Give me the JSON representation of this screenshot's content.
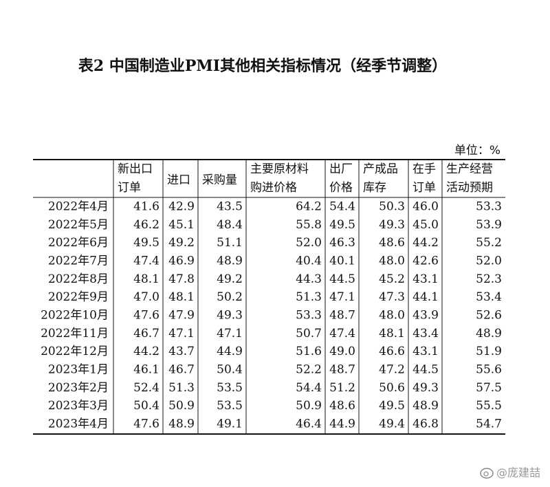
{
  "title": "表2 中国制造业PMI其他相关指标情况（经季节调整）",
  "unit": "单位：%",
  "table": {
    "columns": [
      [
        "新出口",
        "订单"
      ],
      [
        "进口"
      ],
      [
        "采购量"
      ],
      [
        "主要原材料",
        "购进价格"
      ],
      [
        "出厂",
        "价格"
      ],
      [
        "产成品",
        "库存"
      ],
      [
        "在手",
        "订单"
      ],
      [
        "生产经营",
        "活动预期"
      ]
    ],
    "rows": [
      [
        "2022年4月",
        "41.6",
        "42.9",
        "43.5",
        "64.2",
        "54.4",
        "50.3",
        "46.0",
        "53.3"
      ],
      [
        "2022年5月",
        "46.2",
        "45.1",
        "48.4",
        "55.8",
        "49.5",
        "49.3",
        "45.0",
        "53.9"
      ],
      [
        "2022年6月",
        "49.5",
        "49.2",
        "51.1",
        "52.0",
        "46.3",
        "48.6",
        "44.2",
        "55.2"
      ],
      [
        "2022年7月",
        "47.4",
        "46.9",
        "48.9",
        "40.4",
        "40.1",
        "48.0",
        "42.6",
        "52.0"
      ],
      [
        "2022年8月",
        "48.1",
        "47.8",
        "49.2",
        "44.3",
        "44.5",
        "45.2",
        "43.1",
        "52.3"
      ],
      [
        "2022年9月",
        "47.0",
        "48.1",
        "50.2",
        "51.3",
        "47.1",
        "47.3",
        "44.1",
        "53.4"
      ],
      [
        "2022年10月",
        "47.6",
        "47.9",
        "49.3",
        "53.3",
        "48.7",
        "48.0",
        "43.9",
        "52.6"
      ],
      [
        "2022年11月",
        "46.7",
        "47.1",
        "47.1",
        "50.7",
        "47.4",
        "48.1",
        "43.4",
        "48.9"
      ],
      [
        "2022年12月",
        "44.2",
        "43.7",
        "44.9",
        "51.6",
        "49.0",
        "46.6",
        "43.1",
        "51.9"
      ],
      [
        "2023年1月",
        "46.1",
        "46.7",
        "50.4",
        "52.2",
        "48.7",
        "47.2",
        "44.5",
        "55.6"
      ],
      [
        "2023年2月",
        "52.4",
        "51.3",
        "53.5",
        "54.4",
        "51.2",
        "50.6",
        "49.3",
        "57.5"
      ],
      [
        "2023年3月",
        "50.4",
        "50.9",
        "53.5",
        "50.9",
        "48.6",
        "49.5",
        "48.9",
        "55.5"
      ],
      [
        "2023年4月",
        "47.6",
        "48.9",
        "49.1",
        "46.4",
        "44.9",
        "49.4",
        "46.8",
        "54.7"
      ]
    ]
  },
  "watermark": "@庞建喆"
}
